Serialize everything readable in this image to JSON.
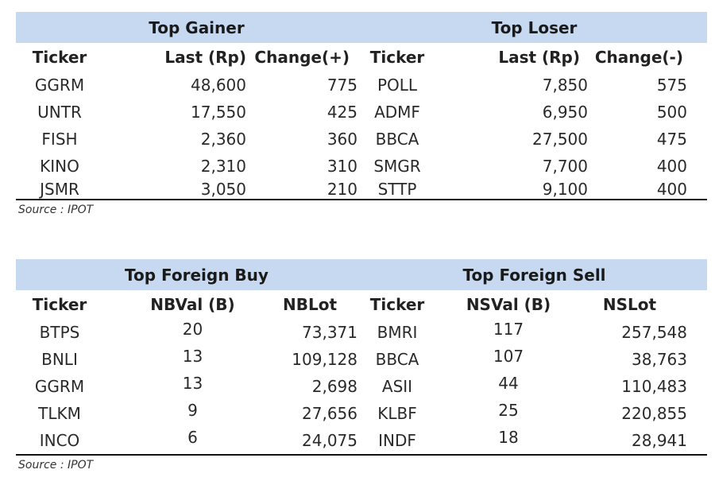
{
  "gainers_losers": {
    "gainer_title": "Top Gainer",
    "loser_title": "Top Loser",
    "headers": [
      "Ticker",
      "Last (Rp)",
      "Change(+)",
      "Ticker",
      "Last (Rp)",
      "Change(-)"
    ],
    "rows": [
      [
        "GGRM",
        "48,600",
        "775",
        "POLL",
        "7,850",
        "575"
      ],
      [
        "UNTR",
        "17,550",
        "425",
        "ADMF",
        "6,950",
        "500"
      ],
      [
        "FISH",
        "2,360",
        "360",
        "BBCA",
        "27,500",
        "475"
      ],
      [
        "KINO",
        "2,310",
        "310",
        "SMGR",
        "7,700",
        "400"
      ],
      [
        "JSMR",
        "3,050",
        "210",
        "STTP",
        "9,100",
        "400"
      ]
    ],
    "source": "Source : IPOT"
  },
  "foreign": {
    "buy_title": "Top Foreign Buy",
    "sell_title": "Top Foreign Sell",
    "headers": [
      "Ticker",
      "NBVal (B)",
      "NBLot",
      "Ticker",
      "NSVal (B)",
      "NSLot"
    ],
    "rows": [
      [
        "BTPS",
        "20",
        "73,371",
        "BMRI",
        "117",
        "257,548"
      ],
      [
        "BNLI",
        "13",
        "109,128",
        "BBCA",
        "107",
        "38,763"
      ],
      [
        "GGRM",
        "13",
        "2,698",
        "ASII",
        "44",
        "110,483"
      ],
      [
        "TLKM",
        "9",
        "27,656",
        "KLBF",
        "25",
        "220,855"
      ],
      [
        "INCO",
        "6",
        "24,075",
        "INDF",
        "18",
        "28,941"
      ]
    ],
    "source": "Source : IPOT"
  }
}
